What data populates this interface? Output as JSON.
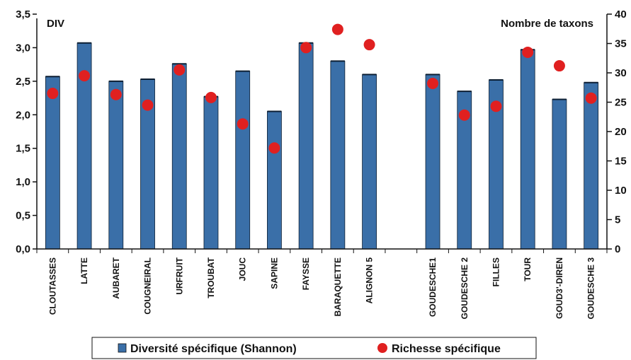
{
  "chart_data": {
    "type": "bar",
    "left_axis_label": "DIV",
    "right_axis_label": "Nombre de taxons",
    "left_ylim": [
      0,
      3.5
    ],
    "left_ticks": [
      "0,0",
      "0,5",
      "1,0",
      "1,5",
      "2,0",
      "2,5",
      "3,0",
      "3,5"
    ],
    "right_ylim": [
      0,
      40
    ],
    "right_ticks": [
      "0",
      "5",
      "10",
      "15",
      "20",
      "25",
      "30",
      "35",
      "40"
    ],
    "categories": [
      "CLOUTASSES",
      "LATTE",
      "AUBARET",
      "COUGNEIRAL",
      "URFRUIT",
      "TROUBAT",
      "JOUC",
      "SAPINE",
      "FAYSSE",
      "BARAQUETTE",
      "ALIGNON 5",
      "",
      "GOUDESCHE1",
      "GOUDESCHE 2",
      "FILLES",
      "TOUR",
      "GOUD3'-DIREN",
      "GOUDESCHE 3"
    ],
    "series": [
      {
        "name": "Diversité spécifique (Shannon)",
        "type": "bar",
        "axis": "left",
        "color": "#3a6fa8",
        "values": [
          2.57,
          3.07,
          2.5,
          2.53,
          2.76,
          2.27,
          2.65,
          2.05,
          3.07,
          2.8,
          2.6,
          null,
          2.6,
          2.35,
          2.52,
          2.97,
          2.23,
          2.48
        ]
      },
      {
        "name": "Richesse spécifique",
        "type": "scatter",
        "axis": "right",
        "color": "#e02020",
        "values": [
          26.5,
          29.5,
          26.3,
          24.5,
          30.5,
          25.8,
          21.3,
          17.2,
          34.3,
          37.4,
          34.8,
          null,
          28.2,
          22.8,
          24.3,
          33.5,
          31.2,
          25.7
        ]
      }
    ],
    "grid": false,
    "legend": "bottom"
  }
}
